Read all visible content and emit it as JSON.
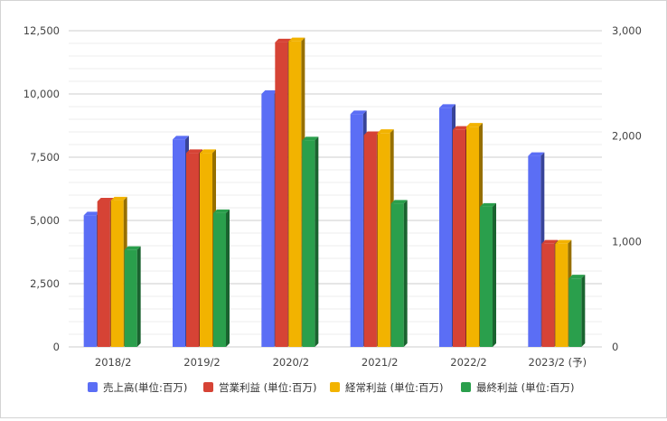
{
  "chart_data": {
    "type": "bar",
    "categories": [
      "2018/2",
      "2019/2",
      "2020/2",
      "2021/2",
      "2022/2",
      "2023/2 (予)"
    ],
    "left_axis": {
      "ylim": [
        0,
        12500
      ],
      "ticks": [
        "0",
        "2,500",
        "5,000",
        "7,500",
        "10,000",
        "12,500"
      ]
    },
    "right_axis": {
      "ylim": [
        0,
        3000
      ],
      "ticks": [
        "0",
        "1,000",
        "2,000",
        "3,000"
      ]
    },
    "grid": true,
    "legend_position": "bottom",
    "series": [
      {
        "name": "売上高(単位:百万)",
        "axis": "left",
        "color": "#5b6ef5",
        "values": [
          5200,
          8200,
          10000,
          9200,
          9450,
          7550
        ]
      },
      {
        "name": "営業利益 (単位:百万)",
        "axis": "right",
        "color": "#d64335",
        "values": [
          1380,
          1840,
          2890,
          2010,
          2060,
          980
        ]
      },
      {
        "name": "経常利益 (単位:百万)",
        "axis": "right",
        "color": "#f2b300",
        "values": [
          1390,
          1840,
          2900,
          2030,
          2090,
          980
        ]
      },
      {
        "name": "最終利益 (単位:百万)",
        "axis": "right",
        "color": "#2a9f4c",
        "values": [
          920,
          1270,
          1960,
          1360,
          1330,
          650
        ]
      }
    ]
  }
}
